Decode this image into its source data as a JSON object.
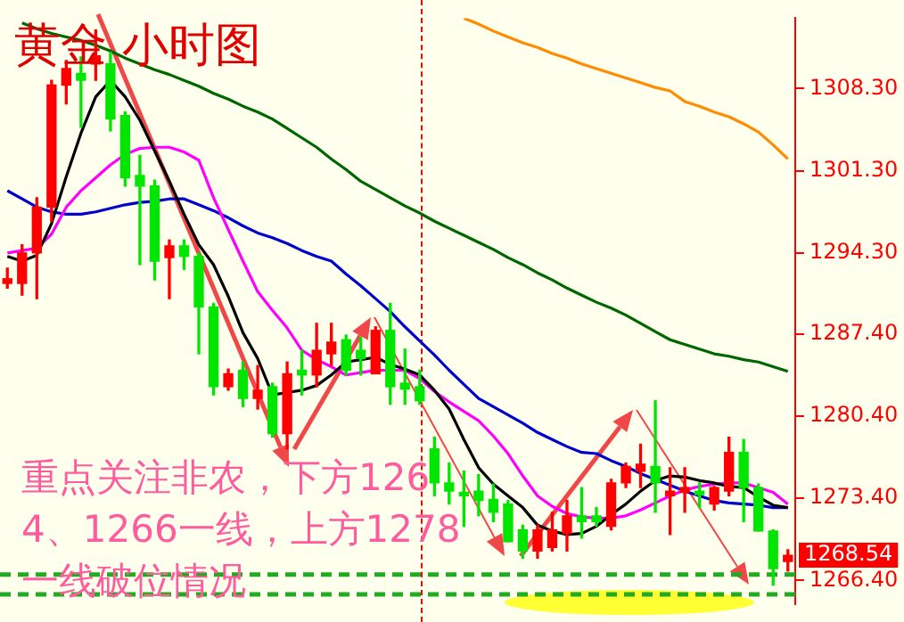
{
  "chart_data": {
    "type": "candlestick",
    "title": "黄金 小时图",
    "categories": [
      null,
      null,
      null,
      null,
      null,
      null,
      null,
      null,
      null,
      null,
      null,
      null,
      null,
      null,
      null,
      null,
      null,
      null,
      null,
      null,
      null,
      null,
      null,
      null,
      null,
      null,
      null,
      null,
      null,
      null,
      null,
      null,
      null,
      null,
      null,
      null,
      null,
      null,
      null,
      null,
      null,
      null,
      null,
      null,
      null,
      null,
      null,
      null,
      null,
      null,
      null,
      null,
      null,
      null
    ],
    "ohlc": [
      [
        1291.7,
        1293,
        1291.3,
        1292.1
      ],
      [
        1291.7,
        1295.0,
        1290.7,
        1294.3
      ],
      [
        1294.3,
        1299,
        1290.4,
        1298.2
      ],
      [
        1298.2,
        1309,
        1297,
        1308.6
      ],
      [
        1308.6,
        1310.7,
        1307,
        1310
      ],
      [
        1309.6,
        1311,
        1305,
        1309.0
      ],
      [
        1310.4,
        1313.3,
        1309,
        1311.1
      ],
      [
        1310.4,
        1311.4,
        1304.7,
        1305.7
      ],
      [
        1306,
        1306.3,
        1300,
        1300.7
      ],
      [
        1300.9,
        1302.6,
        1293.3,
        1300
      ],
      [
        1300,
        1300.5,
        1292,
        1293.6
      ],
      [
        1293.9,
        1295.4,
        1290.4,
        1294.9
      ],
      [
        1294.9,
        1295.4,
        1292.9,
        1294
      ],
      [
        1294,
        1294.3,
        1285.7,
        1289.7
      ],
      [
        1289.7,
        1290,
        1282.2,
        1282.9
      ],
      [
        1282.9,
        1284.4,
        1282.6,
        1284
      ],
      [
        1284.3,
        1285,
        1281.2,
        1281.9
      ],
      [
        1281.9,
        1284.7,
        1281,
        1282.6
      ],
      [
        1282.9,
        1283.2,
        1278.6,
        1278.9
      ],
      [
        1278.9,
        1285,
        1277.6,
        1284
      ],
      [
        1284.3,
        1286,
        1282.2,
        1283.9
      ],
      [
        1283.9,
        1288.3,
        1282.9,
        1286
      ],
      [
        1285.7,
        1288.3,
        1284.7,
        1286.7
      ],
      [
        1286.9,
        1287.3,
        1283.9,
        1284.3
      ],
      [
        1286,
        1287.1,
        1283.9,
        1285.3
      ],
      [
        1284,
        1288,
        1284,
        1287.7
      ],
      [
        1287.7,
        1290,
        1281.4,
        1282.9
      ],
      [
        1283.2,
        1286.1,
        1281.4,
        1282.7
      ],
      [
        1282.9,
        1284.3,
        1281.4,
        1281.7
      ],
      [
        1277.6,
        1278.6,
        1273.6,
        1274.7
      ],
      [
        1274.7,
        1276.4,
        1272.9,
        1274
      ],
      [
        1273.9,
        1275.7,
        1271,
        1273.6
      ],
      [
        1274,
        1275.4,
        1271.9,
        1273.2
      ],
      [
        1273.3,
        1274.6,
        1271.4,
        1272.2
      ],
      [
        1272.9,
        1273.2,
        1269.7,
        1269.7
      ],
      [
        1270.7,
        1271.1,
        1268.3,
        1268.9
      ],
      [
        1268.9,
        1271.1,
        1268.3,
        1270.7
      ],
      [
        1269.2,
        1272.2,
        1268.9,
        1270.7
      ],
      [
        1270.4,
        1273.2,
        1268.9,
        1271.9
      ],
      [
        1271.9,
        1274.3,
        1270,
        1271.4
      ],
      [
        1271.9,
        1272.6,
        1271,
        1271.4
      ],
      [
        1271,
        1275,
        1270.7,
        1274.7
      ],
      [
        1274.7,
        1276.4,
        1274.3,
        1276.1
      ],
      [
        1275.7,
        1278,
        1274.3,
        1276.3
      ],
      [
        1276.1,
        1281.7,
        1272.2,
        1274.7
      ],
      [
        1273.6,
        1276,
        1270.3,
        1274
      ],
      [
        1273.9,
        1276,
        1272.2,
        1274.3
      ],
      [
        1274,
        1274.7,
        1272.6,
        1273.7
      ],
      [
        1272.9,
        1274.4,
        1272.4,
        1274.3
      ],
      [
        1274,
        1278.6,
        1273.6,
        1277.3
      ],
      [
        1277.3,
        1278.4,
        1271.4,
        1274.3
      ],
      [
        1274.3,
        1274.6,
        1270.6,
        1270.6
      ],
      [
        1270.6,
        1270.7,
        1266,
        1267.4
      ],
      [
        1268,
        1269,
        1267.2,
        1268.54
      ]
    ],
    "series": [
      {
        "type": "line",
        "color": "#000000",
        "values": [
          1294.0,
          1293.6,
          1294.1,
          1296.8,
          1300.8,
          1304.5,
          1307.6,
          1309.0,
          1307.6,
          1305.6,
          1303.0,
          1300.4,
          1297.6,
          1295.0,
          1293.3,
          1290.6,
          1287.5,
          1285.3,
          1282.2,
          1282.4,
          1282.6,
          1283.0,
          1283.9,
          1285.0,
          1285.2,
          1285.4,
          1284.8,
          1284.4,
          1283.9,
          1282.6,
          1281.0,
          1278.4,
          1276.0,
          1274.6,
          1273.6,
          1272.6,
          1271.1,
          1270.6,
          1270.3,
          1270.4,
          1271.0,
          1272.0,
          1272.9,
          1274.0,
          1274.9,
          1275.3,
          1275.2,
          1274.9,
          1274.7,
          1274.4,
          1274.3,
          1273.5,
          1272.8,
          1272.6
        ]
      },
      {
        "type": "line",
        "color": "#ff00ff",
        "values": [
          1294.3,
          1294.5,
          1294.7,
          1295.9,
          1298.2,
          1299.6,
          1300.7,
          1301.8,
          1302.7,
          1303.2,
          1303.3,
          1303.3,
          1302.9,
          1302.2,
          1299.0,
          1296.3,
          1293.6,
          1291.0,
          1289.4,
          1287.9,
          1286.0,
          1285.2,
          1284.6,
          1283.9,
          1284.1,
          1284.3,
          1284.3,
          1284.3,
          1283.6,
          1282.5,
          1281.6,
          1280.8,
          1280.0,
          1278.7,
          1277.2,
          1275.3,
          1273.6,
          1272.7,
          1272.1,
          1271.8,
          1271.7,
          1271.7,
          1271.9,
          1272.4,
          1273.0,
          1273.6,
          1274.1,
          1274.4,
          1274.6,
          1274.7,
          1274.7,
          1274.3,
          1273.9,
          1272.9
        ]
      },
      {
        "type": "line",
        "color": "#0000cc",
        "values": [
          1299.6,
          1298.9,
          1298.2,
          1297.8,
          1297.6,
          1297.6,
          1297.8,
          1298.1,
          1298.4,
          1298.6,
          1298.7,
          1298.9,
          1298.9,
          1298.4,
          1297.9,
          1297.3,
          1296.6,
          1296.0,
          1295.6,
          1295.1,
          1294.5,
          1294.0,
          1293.6,
          1292.5,
          1291.5,
          1290.4,
          1289.3,
          1288.0,
          1286.8,
          1285.6,
          1284.3,
          1283.1,
          1281.9,
          1281.2,
          1280.5,
          1279.8,
          1279.0,
          1278.4,
          1277.8,
          1277.3,
          1277.2,
          1276.6,
          1276.1,
          1275.5,
          1275.0,
          1274.5,
          1274.0,
          1273.6,
          1273.2,
          1273.0,
          1272.9,
          1272.8,
          1272.6,
          1272.6
        ]
      },
      {
        "type": "line",
        "color": "#006600",
        "values": [
          null,
          1313.9,
          1313.4,
          1313.0,
          1312.7,
          1312.4,
          1312.0,
          1311.5,
          1310.9,
          1310.4,
          1309.9,
          1309.5,
          1309.0,
          1308.5,
          1307.9,
          1307.4,
          1306.8,
          1306.3,
          1305.7,
          1304.9,
          1304.1,
          1303.3,
          1302.3,
          1301.4,
          1300.4,
          1299.7,
          1299.0,
          1298.3,
          1297.7,
          1297.0,
          1296.4,
          1295.8,
          1295.2,
          1294.6,
          1293.9,
          1293.3,
          1292.6,
          1292.0,
          1291.3,
          1290.7,
          1290.1,
          1289.6,
          1289.0,
          1288.3,
          1287.6,
          1286.9,
          1286.5,
          1286.1,
          1285.7,
          1285.5,
          1285.2,
          1285.0,
          1284.6,
          1284.2
        ]
      },
      {
        "type": "line",
        "color": "#ff8c00",
        "values": [
          null,
          null,
          null,
          null,
          null,
          null,
          null,
          null,
          null,
          null,
          null,
          null,
          null,
          null,
          null,
          null,
          null,
          null,
          null,
          null,
          null,
          null,
          null,
          null,
          null,
          null,
          null,
          null,
          null,
          null,
          null,
          1314.3,
          1313.8,
          1313.2,
          1312.7,
          1312.2,
          1311.8,
          1311.3,
          1310.9,
          1310.4,
          1310.0,
          1309.6,
          1309.2,
          1308.8,
          1308.4,
          1308.1,
          1307.2,
          1306.8,
          1306.3,
          1305.9,
          1305.3,
          1304.6,
          1303.5,
          1302.3
        ]
      }
    ],
    "ylim": [
      1264.4,
      1314.3
    ],
    "yticks": [
      {
        "value": 1266.4,
        "label": "1266.40"
      },
      {
        "value": 1273.4,
        "label": "1273.40"
      },
      {
        "value": 1280.4,
        "label": "1280.40"
      },
      {
        "value": 1287.4,
        "label": "1287.40"
      },
      {
        "value": 1294.3,
        "label": "1294.30"
      },
      {
        "value": 1301.3,
        "label": "1301.30"
      },
      {
        "value": 1308.3,
        "label": "1308.30"
      }
    ],
    "ref_lines": [
      {
        "axis": "y",
        "value": 1266.9,
        "color": "#22aa22",
        "line_style": "dashed"
      },
      {
        "axis": "y",
        "value": 1265.2,
        "color": "#22aa22",
        "line_style": "dashed"
      }
    ],
    "annotations": [
      "1268.54",
      "重点关注非农，下方1264、1266一线，上方1278一线破位情况"
    ],
    "tick_labels": "y",
    "legend": false
  }
}
